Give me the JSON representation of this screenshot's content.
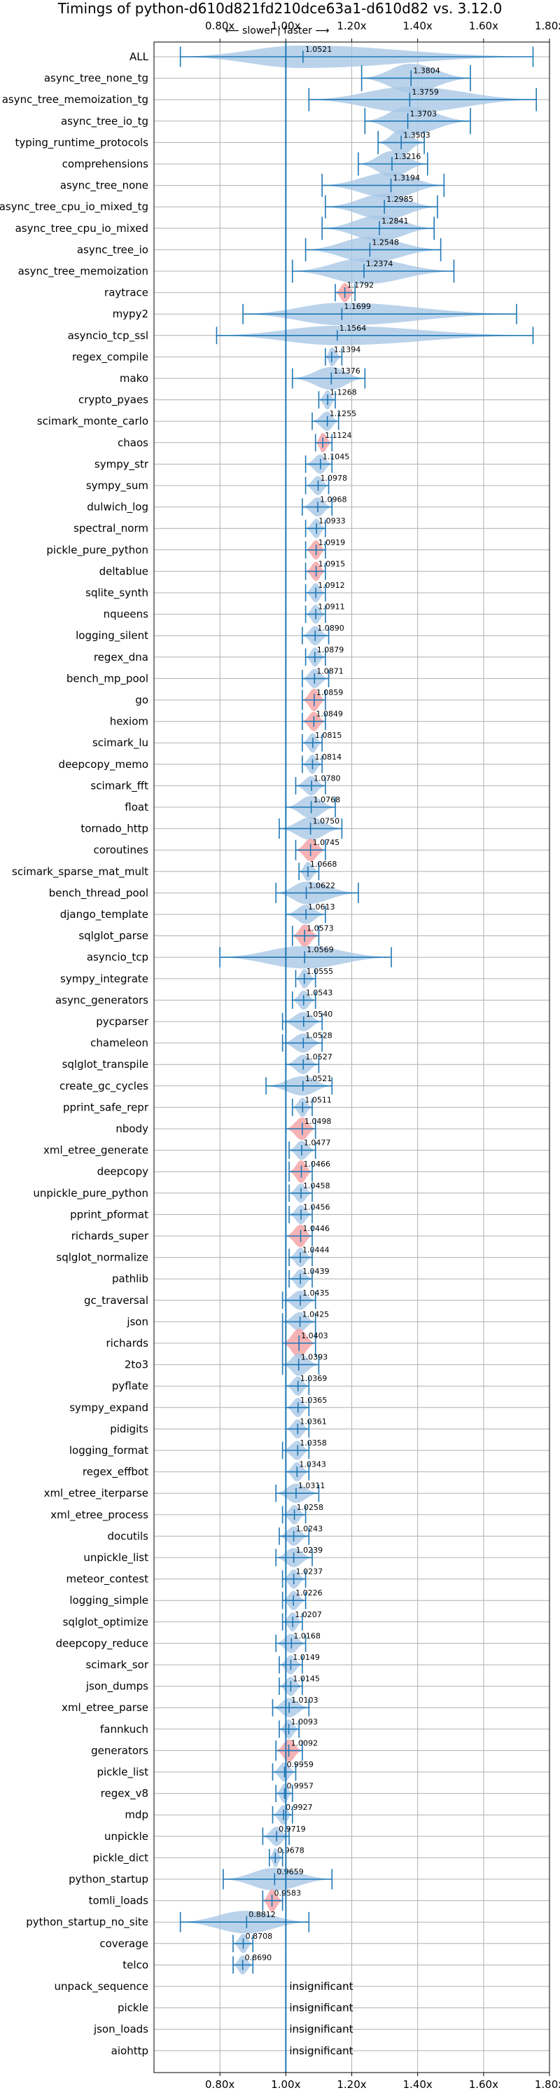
{
  "chart_data": {
    "type": "violin",
    "title": "Timings of python-d610d821fd210dce63a1-d610d82 vs. 3.12.0",
    "x_ticks": [
      "0.80x",
      "1.00x",
      "1.20x",
      "1.40x",
      "1.60x",
      "1.80x"
    ],
    "x_tick_values": [
      0.8,
      1.0,
      1.2,
      1.4,
      1.6,
      1.8
    ],
    "xlim": [
      0.6,
      1.8
    ],
    "annotation": "⟵ slower | faster ⟶",
    "insignificant_label": "insignificant",
    "colors": {
      "violin": "#a9c8e6",
      "violin_highlight": "#f4a6a8",
      "line": "#1f77b4",
      "grid": "#b0b0b0"
    },
    "rows": [
      {
        "name": "ALL",
        "value": "1.0521",
        "median": 1.052,
        "min": 0.68,
        "max": 1.75,
        "width": 0.35,
        "hl": false
      },
      {
        "name": "async_tree_none_tg",
        "value": "1.3804",
        "median": 1.38,
        "min": 1.23,
        "max": 1.56,
        "width": 0.45,
        "hl": false
      },
      {
        "name": "async_tree_memoization_tg",
        "value": "1.3759",
        "median": 1.376,
        "min": 1.07,
        "max": 1.76,
        "width": 0.4,
        "hl": false
      },
      {
        "name": "async_tree_io_tg",
        "value": "1.3703",
        "median": 1.37,
        "min": 1.24,
        "max": 1.56,
        "width": 0.45,
        "hl": false
      },
      {
        "name": "typing_runtime_protocols",
        "value": "1.3503",
        "median": 1.35,
        "min": 1.28,
        "max": 1.42,
        "width": 0.4,
        "hl": false
      },
      {
        "name": "comprehensions",
        "value": "1.3216",
        "median": 1.322,
        "min": 1.22,
        "max": 1.43,
        "width": 0.4,
        "hl": false
      },
      {
        "name": "async_tree_none",
        "value": "1.3194",
        "median": 1.319,
        "min": 1.11,
        "max": 1.48,
        "width": 0.4,
        "hl": false
      },
      {
        "name": "async_tree_cpu_io_mixed_tg",
        "value": "1.2985",
        "median": 1.299,
        "min": 1.12,
        "max": 1.46,
        "width": 0.4,
        "hl": false
      },
      {
        "name": "async_tree_cpu_io_mixed",
        "value": "1.2841",
        "median": 1.284,
        "min": 1.11,
        "max": 1.45,
        "width": 0.4,
        "hl": false
      },
      {
        "name": "async_tree_io",
        "value": "1.2548",
        "median": 1.255,
        "min": 1.06,
        "max": 1.47,
        "width": 0.4,
        "hl": false
      },
      {
        "name": "async_tree_memoization",
        "value": "1.2374",
        "median": 1.237,
        "min": 1.02,
        "max": 1.51,
        "width": 0.4,
        "hl": false
      },
      {
        "name": "raytrace",
        "value": "1.1792",
        "median": 1.179,
        "min": 1.15,
        "max": 1.21,
        "width": 0.3,
        "hl": true
      },
      {
        "name": "mypy2",
        "value": "1.1699",
        "median": 1.17,
        "min": 0.87,
        "max": 1.7,
        "width": 0.35,
        "hl": false
      },
      {
        "name": "asyncio_tcp_ssl",
        "value": "1.1564",
        "median": 1.156,
        "min": 0.79,
        "max": 1.75,
        "width": 0.3,
        "hl": false
      },
      {
        "name": "regex_compile",
        "value": "1.1394",
        "median": 1.139,
        "min": 1.12,
        "max": 1.17,
        "width": 0.3,
        "hl": false
      },
      {
        "name": "mako",
        "value": "1.1376",
        "median": 1.138,
        "min": 1.02,
        "max": 1.24,
        "width": 0.35,
        "hl": false
      },
      {
        "name": "crypto_pyaes",
        "value": "1.1268",
        "median": 1.127,
        "min": 1.1,
        "max": 1.15,
        "width": 0.3,
        "hl": false
      },
      {
        "name": "scimark_monte_carlo",
        "value": "1.1255",
        "median": 1.126,
        "min": 1.08,
        "max": 1.16,
        "width": 0.3,
        "hl": false
      },
      {
        "name": "chaos",
        "value": "1.1124",
        "median": 1.112,
        "min": 1.09,
        "max": 1.14,
        "width": 0.3,
        "hl": true
      },
      {
        "name": "sympy_str",
        "value": "1.1045",
        "median": 1.105,
        "min": 1.06,
        "max": 1.14,
        "width": 0.3,
        "hl": false
      },
      {
        "name": "sympy_sum",
        "value": "1.0978",
        "median": 1.098,
        "min": 1.06,
        "max": 1.13,
        "width": 0.3,
        "hl": false
      },
      {
        "name": "dulwich_log",
        "value": "1.0968",
        "median": 1.097,
        "min": 1.05,
        "max": 1.14,
        "width": 0.3,
        "hl": false
      },
      {
        "name": "spectral_norm",
        "value": "1.0933",
        "median": 1.093,
        "min": 1.06,
        "max": 1.12,
        "width": 0.3,
        "hl": false
      },
      {
        "name": "pickle_pure_python",
        "value": "1.0919",
        "median": 1.092,
        "min": 1.06,
        "max": 1.12,
        "width": 0.3,
        "hl": true
      },
      {
        "name": "deltablue",
        "value": "1.0915",
        "median": 1.092,
        "min": 1.06,
        "max": 1.12,
        "width": 0.3,
        "hl": true
      },
      {
        "name": "sqlite_synth",
        "value": "1.0912",
        "median": 1.091,
        "min": 1.06,
        "max": 1.12,
        "width": 0.3,
        "hl": false
      },
      {
        "name": "nqueens",
        "value": "1.0911",
        "median": 1.091,
        "min": 1.06,
        "max": 1.12,
        "width": 0.3,
        "hl": false
      },
      {
        "name": "logging_silent",
        "value": "1.0890",
        "median": 1.089,
        "min": 1.05,
        "max": 1.13,
        "width": 0.3,
        "hl": false
      },
      {
        "name": "regex_dna",
        "value": "1.0879",
        "median": 1.088,
        "min": 1.06,
        "max": 1.12,
        "width": 0.3,
        "hl": false
      },
      {
        "name": "bench_mp_pool",
        "value": "1.0871",
        "median": 1.087,
        "min": 1.05,
        "max": 1.13,
        "width": 0.3,
        "hl": false
      },
      {
        "name": "go",
        "value": "1.0859",
        "median": 1.086,
        "min": 1.05,
        "max": 1.12,
        "width": 0.35,
        "hl": true
      },
      {
        "name": "hexiom",
        "value": "1.0849",
        "median": 1.085,
        "min": 1.05,
        "max": 1.12,
        "width": 0.3,
        "hl": true
      },
      {
        "name": "scimark_lu",
        "value": "1.0815",
        "median": 1.082,
        "min": 1.05,
        "max": 1.11,
        "width": 0.3,
        "hl": false
      },
      {
        "name": "deepcopy_memo",
        "value": "1.0814",
        "median": 1.081,
        "min": 1.05,
        "max": 1.11,
        "width": 0.3,
        "hl": false
      },
      {
        "name": "scimark_fft",
        "value": "1.0780",
        "median": 1.078,
        "min": 1.03,
        "max": 1.12,
        "width": 0.3,
        "hl": false
      },
      {
        "name": "float",
        "value": "1.0768",
        "median": 1.077,
        "min": 1.0,
        "max": 1.15,
        "width": 0.35,
        "hl": false
      },
      {
        "name": "tornado_http",
        "value": "1.0750",
        "median": 1.075,
        "min": 0.98,
        "max": 1.17,
        "width": 0.35,
        "hl": false
      },
      {
        "name": "coroutines",
        "value": "1.0745",
        "median": 1.075,
        "min": 1.03,
        "max": 1.12,
        "width": 0.35,
        "hl": true
      },
      {
        "name": "scimark_sparse_mat_mult",
        "value": "1.0668",
        "median": 1.067,
        "min": 1.04,
        "max": 1.1,
        "width": 0.3,
        "hl": false
      },
      {
        "name": "bench_thread_pool",
        "value": "1.0622",
        "median": 1.062,
        "min": 0.97,
        "max": 1.22,
        "width": 0.35,
        "hl": false
      },
      {
        "name": "django_template",
        "value": "1.0613",
        "median": 1.061,
        "min": 1.0,
        "max": 1.12,
        "width": 0.3,
        "hl": false
      },
      {
        "name": "sqlglot_parse",
        "value": "1.0573",
        "median": 1.057,
        "min": 1.02,
        "max": 1.1,
        "width": 0.35,
        "hl": true
      },
      {
        "name": "asyncio_tcp",
        "value": "1.0569",
        "median": 1.057,
        "min": 0.8,
        "max": 1.32,
        "width": 0.35,
        "hl": false
      },
      {
        "name": "sympy_integrate",
        "value": "1.0555",
        "median": 1.056,
        "min": 1.03,
        "max": 1.09,
        "width": 0.3,
        "hl": false
      },
      {
        "name": "async_generators",
        "value": "1.0543",
        "median": 1.054,
        "min": 1.02,
        "max": 1.09,
        "width": 0.3,
        "hl": false
      },
      {
        "name": "pycparser",
        "value": "1.0540",
        "median": 1.054,
        "min": 0.99,
        "max": 1.11,
        "width": 0.3,
        "hl": false
      },
      {
        "name": "chameleon",
        "value": "1.0528",
        "median": 1.053,
        "min": 0.99,
        "max": 1.11,
        "width": 0.3,
        "hl": false
      },
      {
        "name": "sqlglot_transpile",
        "value": "1.0527",
        "median": 1.053,
        "min": 1.0,
        "max": 1.1,
        "width": 0.3,
        "hl": false
      },
      {
        "name": "create_gc_cycles",
        "value": "1.0521",
        "median": 1.052,
        "min": 0.94,
        "max": 1.14,
        "width": 0.3,
        "hl": false
      },
      {
        "name": "pprint_safe_repr",
        "value": "1.0511",
        "median": 1.051,
        "min": 1.02,
        "max": 1.08,
        "width": 0.3,
        "hl": false
      },
      {
        "name": "nbody",
        "value": "1.0498",
        "median": 1.05,
        "min": 1.0,
        "max": 1.09,
        "width": 0.35,
        "hl": true
      },
      {
        "name": "xml_etree_generate",
        "value": "1.0477",
        "median": 1.048,
        "min": 1.01,
        "max": 1.09,
        "width": 0.3,
        "hl": false
      },
      {
        "name": "deepcopy",
        "value": "1.0466",
        "median": 1.047,
        "min": 1.01,
        "max": 1.08,
        "width": 0.35,
        "hl": true
      },
      {
        "name": "unpickle_pure_python",
        "value": "1.0458",
        "median": 1.046,
        "min": 1.01,
        "max": 1.08,
        "width": 0.3,
        "hl": false
      },
      {
        "name": "pprint_pformat",
        "value": "1.0456",
        "median": 1.046,
        "min": 1.01,
        "max": 1.08,
        "width": 0.3,
        "hl": false
      },
      {
        "name": "richards_super",
        "value": "1.0446",
        "median": 1.045,
        "min": 1.0,
        "max": 1.08,
        "width": 0.35,
        "hl": true
      },
      {
        "name": "sqlglot_normalize",
        "value": "1.0444",
        "median": 1.044,
        "min": 1.01,
        "max": 1.08,
        "width": 0.3,
        "hl": false
      },
      {
        "name": "pathlib",
        "value": "1.0439",
        "median": 1.044,
        "min": 1.01,
        "max": 1.08,
        "width": 0.3,
        "hl": false
      },
      {
        "name": "gc_traversal",
        "value": "1.0435",
        "median": 1.044,
        "min": 0.99,
        "max": 1.09,
        "width": 0.3,
        "hl": false
      },
      {
        "name": "json",
        "value": "1.0425",
        "median": 1.043,
        "min": 0.99,
        "max": 1.09,
        "width": 0.3,
        "hl": false
      },
      {
        "name": "richards",
        "value": "1.0403",
        "median": 1.04,
        "min": 0.99,
        "max": 1.09,
        "width": 0.45,
        "hl": true
      },
      {
        "name": "2to3",
        "value": "1.0393",
        "median": 1.039,
        "min": 0.99,
        "max": 1.1,
        "width": 0.35,
        "hl": false
      },
      {
        "name": "pyflate",
        "value": "1.0369",
        "median": 1.037,
        "min": 1.0,
        "max": 1.07,
        "width": 0.3,
        "hl": false
      },
      {
        "name": "sympy_expand",
        "value": "1.0365",
        "median": 1.037,
        "min": 1.0,
        "max": 1.07,
        "width": 0.3,
        "hl": false
      },
      {
        "name": "pidigits",
        "value": "1.0361",
        "median": 1.036,
        "min": 1.0,
        "max": 1.07,
        "width": 0.3,
        "hl": false
      },
      {
        "name": "logging_format",
        "value": "1.0358",
        "median": 1.036,
        "min": 0.99,
        "max": 1.07,
        "width": 0.3,
        "hl": false
      },
      {
        "name": "regex_effbot",
        "value": "1.0343",
        "median": 1.034,
        "min": 1.0,
        "max": 1.07,
        "width": 0.3,
        "hl": false
      },
      {
        "name": "xml_etree_iterparse",
        "value": "1.0311",
        "median": 1.031,
        "min": 0.97,
        "max": 1.1,
        "width": 0.3,
        "hl": false
      },
      {
        "name": "xml_etree_process",
        "value": "1.0258",
        "median": 1.026,
        "min": 0.99,
        "max": 1.06,
        "width": 0.3,
        "hl": false
      },
      {
        "name": "docutils",
        "value": "1.0243",
        "median": 1.024,
        "min": 0.98,
        "max": 1.07,
        "width": 0.3,
        "hl": false
      },
      {
        "name": "unpickle_list",
        "value": "1.0239",
        "median": 1.024,
        "min": 0.97,
        "max": 1.08,
        "width": 0.3,
        "hl": false
      },
      {
        "name": "meteor_contest",
        "value": "1.0237",
        "median": 1.024,
        "min": 0.99,
        "max": 1.06,
        "width": 0.3,
        "hl": false
      },
      {
        "name": "logging_simple",
        "value": "1.0226",
        "median": 1.023,
        "min": 0.99,
        "max": 1.06,
        "width": 0.3,
        "hl": false
      },
      {
        "name": "sqlglot_optimize",
        "value": "1.0207",
        "median": 1.021,
        "min": 0.99,
        "max": 1.05,
        "width": 0.3,
        "hl": false
      },
      {
        "name": "deepcopy_reduce",
        "value": "1.0168",
        "median": 1.017,
        "min": 0.97,
        "max": 1.06,
        "width": 0.3,
        "hl": false
      },
      {
        "name": "scimark_sor",
        "value": "1.0149",
        "median": 1.015,
        "min": 0.98,
        "max": 1.05,
        "width": 0.3,
        "hl": false
      },
      {
        "name": "json_dumps",
        "value": "1.0145",
        "median": 1.015,
        "min": 0.98,
        "max": 1.05,
        "width": 0.3,
        "hl": false
      },
      {
        "name": "xml_etree_parse",
        "value": "1.0103",
        "median": 1.01,
        "min": 0.96,
        "max": 1.07,
        "width": 0.3,
        "hl": false
      },
      {
        "name": "fannkuch",
        "value": "1.0093",
        "median": 1.009,
        "min": 0.98,
        "max": 1.04,
        "width": 0.3,
        "hl": false
      },
      {
        "name": "generators",
        "value": "1.0092",
        "median": 1.009,
        "min": 0.97,
        "max": 1.05,
        "width": 0.35,
        "hl": true
      },
      {
        "name": "pickle_list",
        "value": "0.9959",
        "median": 0.996,
        "min": 0.96,
        "max": 1.03,
        "width": 0.3,
        "hl": false
      },
      {
        "name": "regex_v8",
        "value": "0.9957",
        "median": 0.996,
        "min": 0.97,
        "max": 1.02,
        "width": 0.3,
        "hl": false
      },
      {
        "name": "mdp",
        "value": "0.9927",
        "median": 0.993,
        "min": 0.96,
        "max": 1.02,
        "width": 0.3,
        "hl": false
      },
      {
        "name": "unpickle",
        "value": "0.9719",
        "median": 0.972,
        "min": 0.93,
        "max": 1.01,
        "width": 0.3,
        "hl": false
      },
      {
        "name": "pickle_dict",
        "value": "0.9678",
        "median": 0.968,
        "min": 0.95,
        "max": 0.99,
        "width": 0.3,
        "hl": false
      },
      {
        "name": "python_startup",
        "value": "0.9659",
        "median": 0.966,
        "min": 0.81,
        "max": 1.14,
        "width": 0.35,
        "hl": false
      },
      {
        "name": "tomli_loads",
        "value": "0.9583",
        "median": 0.958,
        "min": 0.93,
        "max": 0.99,
        "width": 0.35,
        "hl": true
      },
      {
        "name": "python_startup_no_site",
        "value": "0.8812",
        "median": 0.881,
        "min": 0.68,
        "max": 1.07,
        "width": 0.35,
        "hl": false
      },
      {
        "name": "coverage",
        "value": "0.8708",
        "median": 0.871,
        "min": 0.84,
        "max": 0.9,
        "width": 0.3,
        "hl": false
      },
      {
        "name": "telco",
        "value": "0.8690",
        "median": 0.869,
        "min": 0.84,
        "max": 0.9,
        "width": 0.3,
        "hl": false
      },
      {
        "name": "unpack_sequence",
        "value": "insignificant",
        "insignificant": true
      },
      {
        "name": "pickle",
        "value": "insignificant",
        "insignificant": true
      },
      {
        "name": "json_loads",
        "value": "insignificant",
        "insignificant": true
      },
      {
        "name": "aiohttp",
        "value": "insignificant",
        "insignificant": true
      }
    ]
  }
}
